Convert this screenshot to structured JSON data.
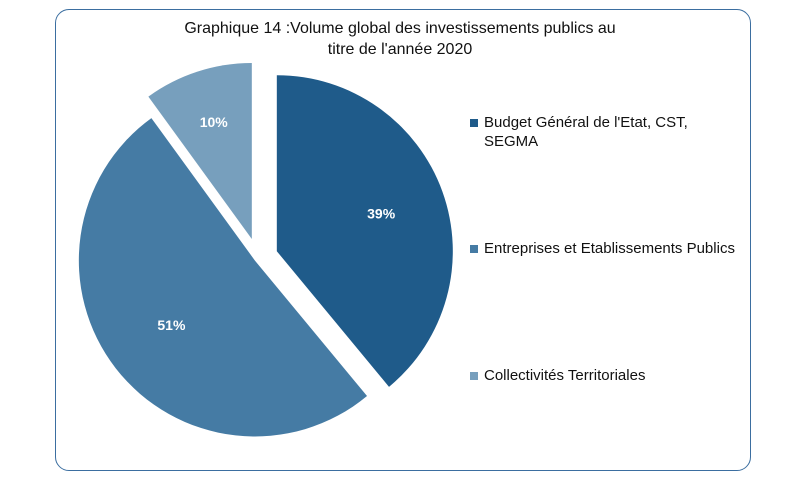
{
  "chart_data": {
    "type": "pie",
    "title_lines": [
      "Graphique 14 :Volume global des investissements publics au",
      "titre de l'année 2020"
    ],
    "labels": [
      "Budget Général de l'Etat, CST, SEGMA",
      "Entreprises et Etablissements Publics",
      "Collectivités Territoriales"
    ],
    "values": [
      39,
      51,
      10
    ],
    "value_labels": [
      "39%",
      "51%",
      "10%"
    ],
    "colors": [
      "#1f5b8a",
      "#457ba4",
      "#779fbd"
    ],
    "legend_position": "right",
    "exploded": true
  }
}
